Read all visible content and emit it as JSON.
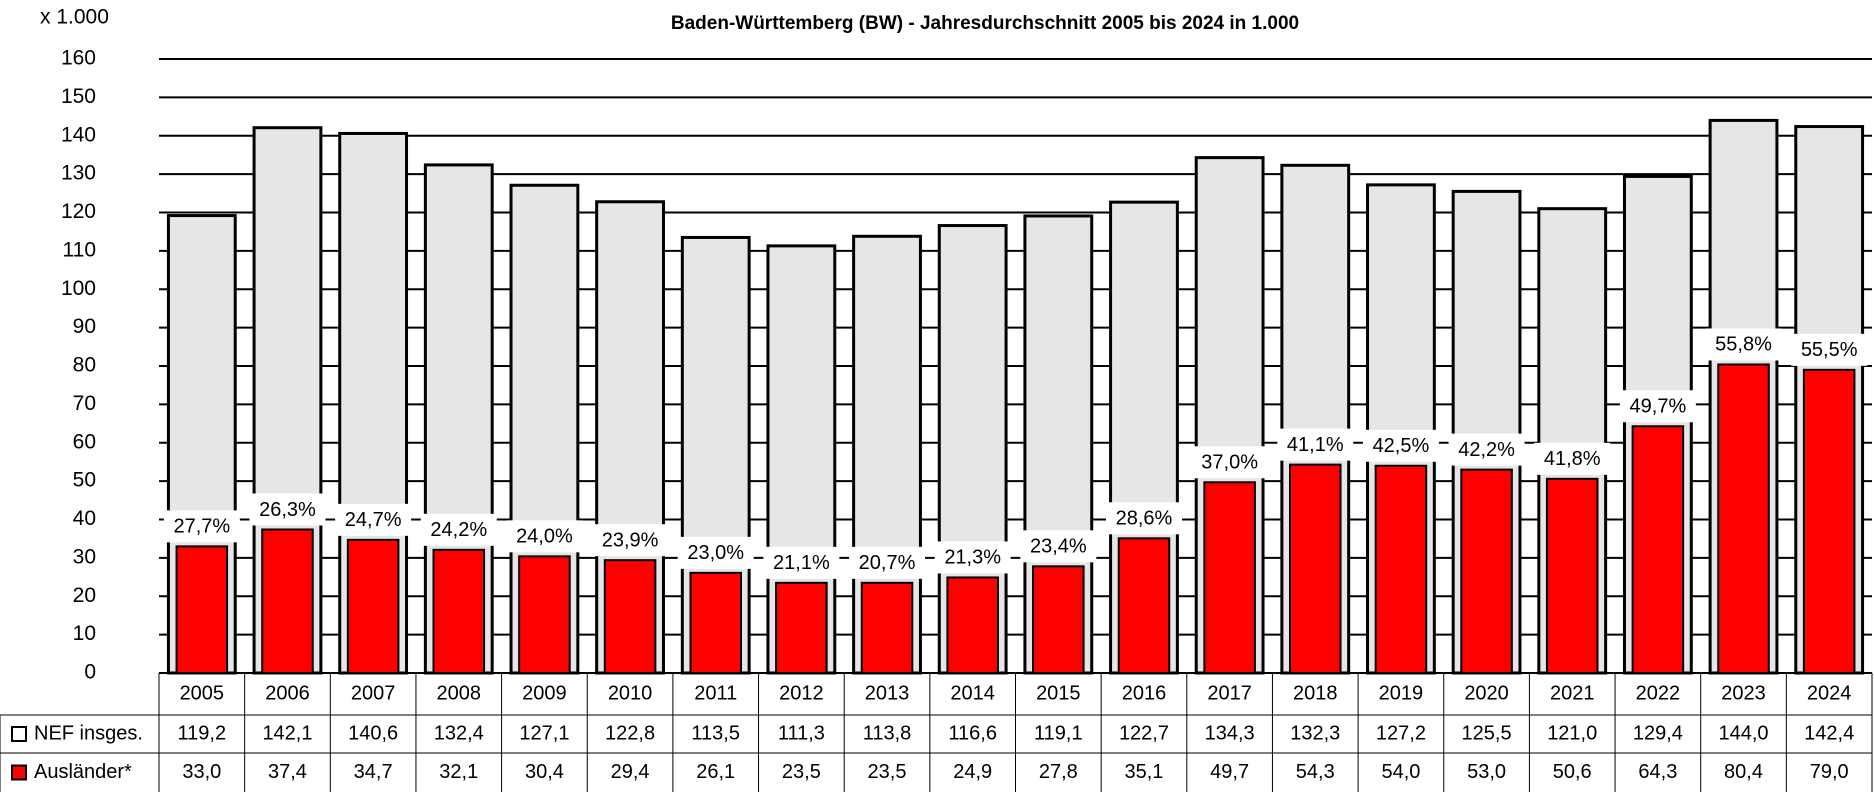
{
  "chart_data": {
    "type": "bar",
    "title": "Baden-Württemberg (BW) - Jahresdurchschnitt 2005 bis 2024 in 1.000",
    "y_unit_label": "x 1.000",
    "categories": [
      "2005",
      "2006",
      "2007",
      "2008",
      "2009",
      "2010",
      "2011",
      "2012",
      "2013",
      "2014",
      "2015",
      "2016",
      "2017",
      "2018",
      "2019",
      "2020",
      "2021",
      "2022",
      "2023",
      "2024"
    ],
    "series": [
      {
        "name": "NEF insges.",
        "color": "#e6e6e6",
        "values": [
          119.2,
          142.1,
          140.6,
          132.4,
          127.1,
          122.8,
          113.5,
          111.3,
          113.8,
          116.6,
          119.1,
          122.7,
          134.3,
          132.3,
          127.2,
          125.5,
          121.0,
          129.4,
          144.0,
          142.4
        ],
        "value_labels": [
          "119,2",
          "142,1",
          "140,6",
          "132,4",
          "127,1",
          "122,8",
          "113,5",
          "111,3",
          "113,8",
          "116,6",
          "119,1",
          "122,7",
          "134,3",
          "132,3",
          "127,2",
          "125,5",
          "121,0",
          "129,4",
          "144,0",
          "142,4"
        ]
      },
      {
        "name": "Ausländer*",
        "color": "#ff0000",
        "values": [
          33.0,
          37.4,
          34.7,
          32.1,
          30.4,
          29.4,
          26.1,
          23.5,
          23.5,
          24.9,
          27.8,
          35.1,
          49.7,
          54.3,
          54.0,
          53.0,
          50.6,
          64.3,
          80.4,
          79.0
        ],
        "value_labels": [
          "33,0",
          "37,4",
          "34,7",
          "32,1",
          "30,4",
          "29,4",
          "26,1",
          "23,5",
          "23,5",
          "24,9",
          "27,8",
          "35,1",
          "49,7",
          "54,3",
          "54,0",
          "53,0",
          "50,6",
          "64,3",
          "80,4",
          "79,0"
        ]
      }
    ],
    "shares": [
      27.7,
      26.3,
      24.7,
      24.2,
      24.0,
      23.9,
      23.0,
      21.1,
      20.7,
      21.3,
      23.4,
      28.6,
      37.0,
      41.1,
      42.5,
      42.2,
      41.8,
      49.7,
      55.8,
      55.5
    ],
    "share_labels": [
      "27,7%",
      "26,3%",
      "24,7%",
      "24,2%",
      "24,0%",
      "23,9%",
      "23,0%",
      "21,1%",
      "20,7%",
      "21,3%",
      "23,4%",
      "28,6%",
      "37,0%",
      "41,1%",
      "42,5%",
      "42,2%",
      "41,8%",
      "49,7%",
      "55,8%",
      "55,5%"
    ],
    "ylim": [
      0,
      160
    ],
    "yticks": [
      0,
      10,
      20,
      30,
      40,
      50,
      60,
      70,
      80,
      90,
      100,
      110,
      120,
      130,
      140,
      150,
      160
    ],
    "grid": true
  }
}
